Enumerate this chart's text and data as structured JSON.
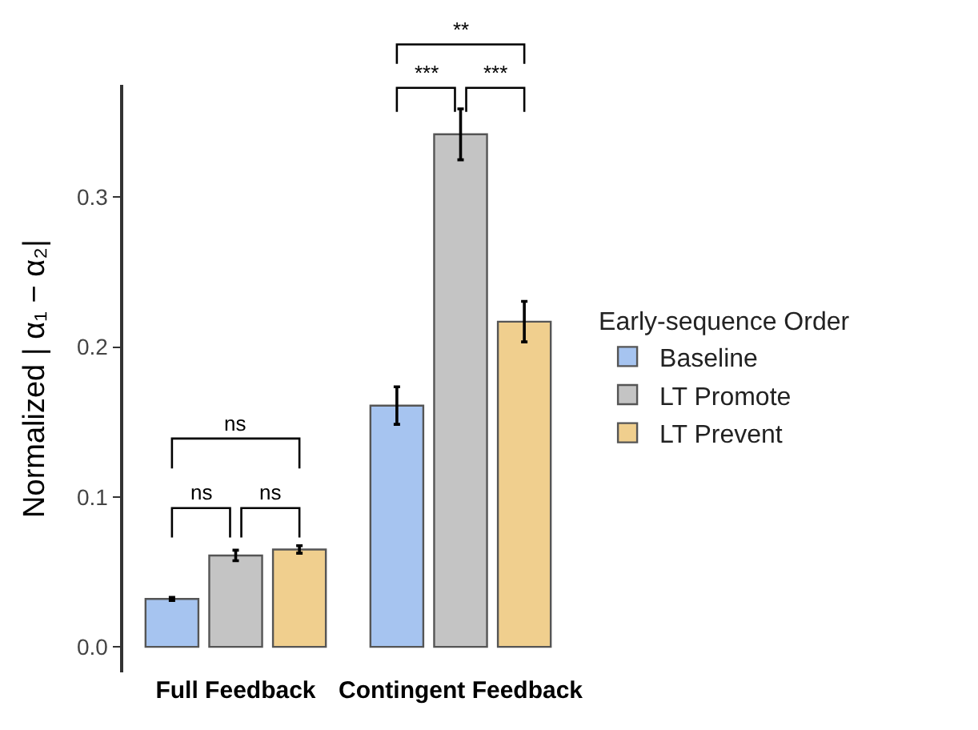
{
  "chart_data": {
    "type": "bar",
    "ylabel": "Normalized | α₁ − α₂|",
    "legend_title": "Early-sequence Order",
    "categories": [
      "Full Feedback",
      "Contingent Feedback"
    ],
    "series": [
      {
        "name": "Baseline",
        "color": "#a6c4f0",
        "values": [
          0.032,
          0.161
        ],
        "errors": [
          0.001,
          0.0125
        ]
      },
      {
        "name": "LT Promote",
        "color": "#c4c4c4",
        "values": [
          0.061,
          0.342
        ],
        "errors": [
          0.0035,
          0.017
        ]
      },
      {
        "name": "LT Prevent",
        "color": "#f0cf8e",
        "values": [
          0.065,
          0.217
        ],
        "errors": [
          0.0025,
          0.0135
        ]
      }
    ],
    "ylim": [
      -0.017,
      0.375
    ],
    "yticks": [
      {
        "value": 0,
        "label": "0.0"
      },
      0.1,
      0.2,
      0.3
    ],
    "annotations": [
      "ns",
      "ns",
      "ns",
      "***",
      "***",
      "**"
    ],
    "legend": "right"
  }
}
